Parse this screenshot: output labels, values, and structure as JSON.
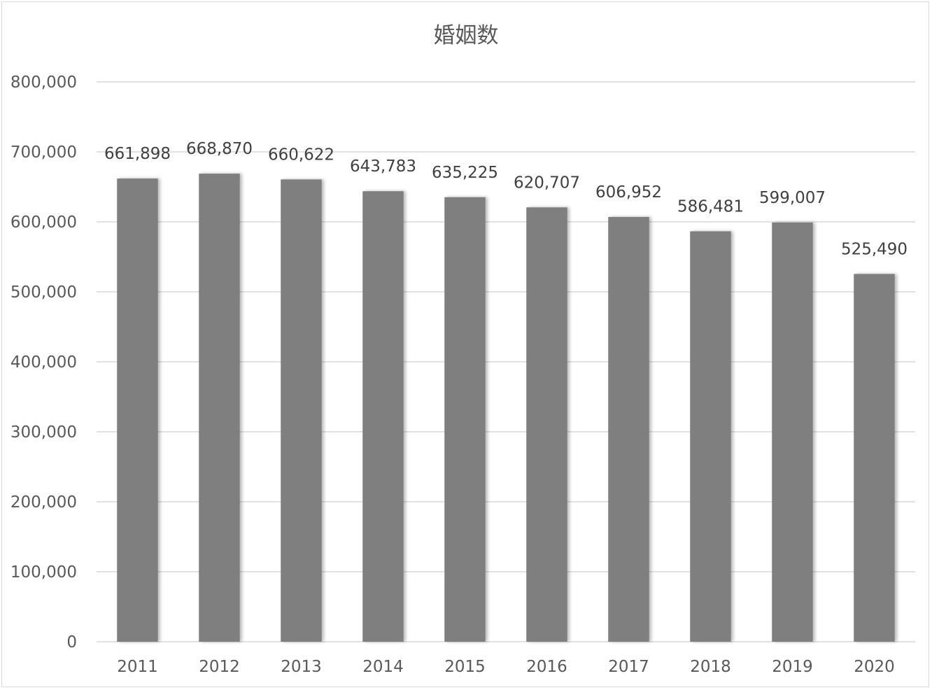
{
  "chart_data": {
    "type": "bar",
    "title": "婚姻数",
    "categories": [
      "2011",
      "2012",
      "2013",
      "2014",
      "2015",
      "2016",
      "2017",
      "2018",
      "2019",
      "2020"
    ],
    "values": [
      661898,
      668870,
      660622,
      643783,
      635225,
      620707,
      606952,
      586481,
      599007,
      525490
    ],
    "value_labels": [
      "661,898",
      "668,870",
      "660,622",
      "643,783",
      "635,225",
      "620,707",
      "606,952",
      "586,481",
      "599,007",
      "525,490"
    ],
    "y_ticks": [
      "0",
      "100,000",
      "200,000",
      "300,000",
      "400,000",
      "500,000",
      "600,000",
      "700,000",
      "800,000"
    ],
    "ylim": [
      0,
      800000
    ],
    "grid": true,
    "legend": "none",
    "bar_color": "#7f7f7f",
    "xlabel": "",
    "ylabel": ""
  }
}
